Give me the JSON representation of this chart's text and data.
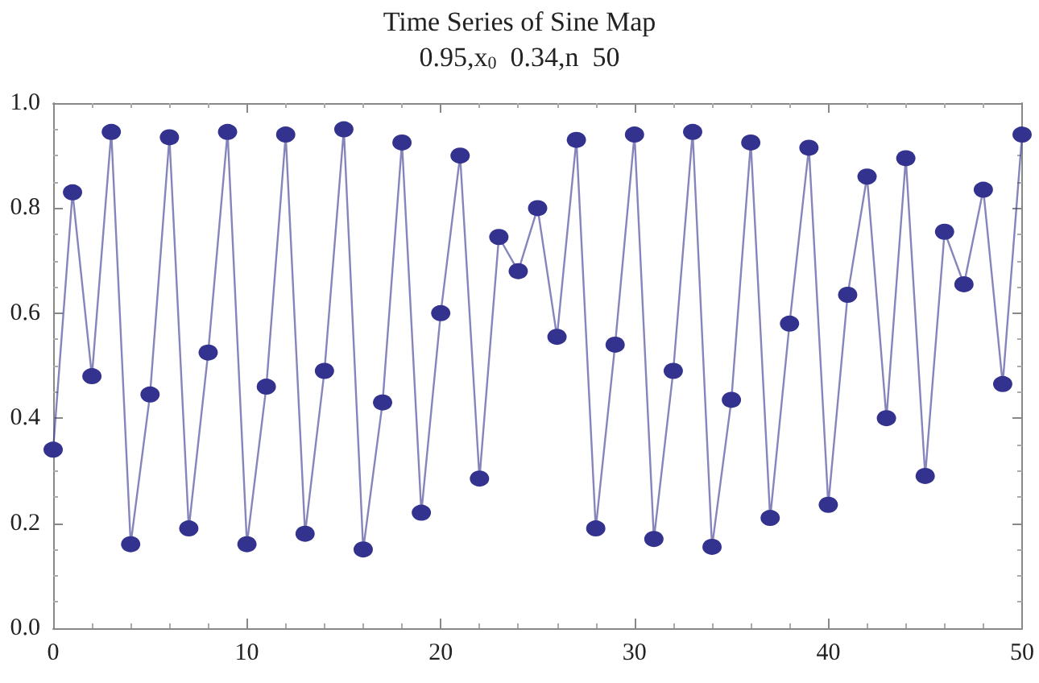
{
  "chart_data": {
    "type": "line",
    "title": "Time Series of Sine Map",
    "subtitle": "0.95,x$_{0}$  0.34,n  50",
    "x": [
      0,
      1,
      2,
      3,
      4,
      5,
      6,
      7,
      8,
      9,
      10,
      11,
      12,
      13,
      14,
      15,
      16,
      17,
      18,
      19,
      20,
      21,
      22,
      23,
      24,
      25,
      26,
      27,
      28,
      29,
      30,
      31,
      32,
      33,
      34,
      35,
      36,
      37,
      38,
      39,
      40,
      41,
      42,
      43,
      44,
      45,
      46,
      47,
      48,
      49,
      50
    ],
    "series": [
      {
        "color": "#33338f",
        "values": [
          0.34,
          0.83,
          0.48,
          0.945,
          0.16,
          0.445,
          0.935,
          0.19,
          0.525,
          0.945,
          0.16,
          0.46,
          0.94,
          0.18,
          0.49,
          0.95,
          0.15,
          0.43,
          0.925,
          0.22,
          0.6,
          0.9,
          0.285,
          0.745,
          0.68,
          0.8,
          0.555,
          0.93,
          0.19,
          0.54,
          0.94,
          0.17,
          0.49,
          0.945,
          0.155,
          0.435,
          0.925,
          0.21,
          0.58,
          0.915,
          0.235,
          0.635,
          0.86,
          0.4,
          0.895,
          0.29,
          0.755,
          0.655,
          0.835,
          0.465,
          0.94
        ]
      }
    ],
    "xlim": [
      0,
      50
    ],
    "xticks": [
      0,
      10,
      20,
      30,
      40,
      50
    ],
    "ylim": [
      0,
      1
    ],
    "yticks": [
      {
        "value": 0,
        "label": "0.0"
      },
      {
        "value": 0.2,
        "label": "0.2"
      },
      {
        "value": 0.4,
        "label": "0.4"
      },
      {
        "value": 0.6,
        "label": "0.6"
      },
      {
        "value": 0.8,
        "label": "0.8"
      },
      {
        "value": 1,
        "label": "1.0"
      }
    ],
    "grid": false,
    "marker": "circle",
    "line_style": "solid"
  }
}
